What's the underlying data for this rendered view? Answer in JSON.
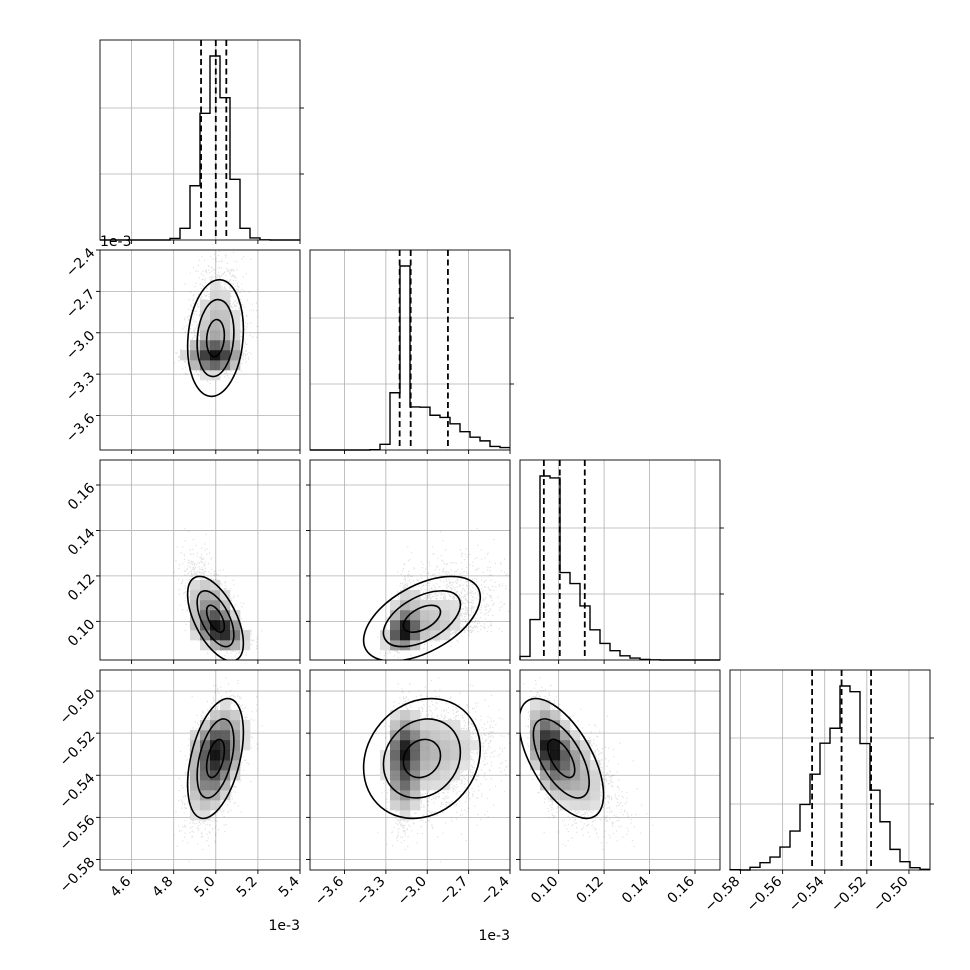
{
  "chart_data": {
    "type": "corner",
    "parameters": [
      {
        "range": [
          4.45,
          5.4
        ],
        "ticks": [
          4.6,
          4.8,
          5.0,
          5.2,
          5.4
        ],
        "tick_labels": [
          "4.6",
          "4.8",
          "5.0",
          "5.2",
          "5.4"
        ],
        "offset_label": "1e-3",
        "quantiles": [
          4.93,
          5.0,
          5.05
        ],
        "peak": 5.0,
        "sigma_left": 0.06,
        "sigma_right": 0.06
      },
      {
        "range": [
          -3.85,
          -2.4
        ],
        "ticks": [
          -3.6,
          -3.3,
          -3.0,
          -2.7,
          -2.4
        ],
        "tick_labels": [
          "−3.6",
          "−3.3",
          "−3.0",
          "−2.7",
          "−2.4"
        ],
        "offset_label": "1e-3",
        "quantiles": [
          -3.2,
          -3.12,
          -2.85
        ],
        "peak": -3.13,
        "sigma_left": 0.06,
        "sigma_right": 0.3
      },
      {
        "range": [
          0.083,
          0.171
        ],
        "ticks": [
          0.1,
          0.12,
          0.14,
          0.16
        ],
        "tick_labels": [
          "0.10",
          "0.12",
          "0.14",
          "0.16"
        ],
        "offset_label": "",
        "quantiles": [
          0.0935,
          0.1005,
          0.1115
        ],
        "peak": 0.098,
        "sigma_left": 0.004,
        "sigma_right": 0.012
      },
      {
        "range": [
          -0.585,
          -0.49
        ],
        "ticks": [
          -0.58,
          -0.56,
          -0.54,
          -0.52,
          -0.5
        ],
        "tick_labels": [
          "−0.58",
          "−0.56",
          "−0.54",
          "−0.52",
          "−0.50"
        ],
        "offset_label": "",
        "quantiles": [
          -0.546,
          -0.532,
          -0.518
        ],
        "peak": -0.531,
        "sigma_left": 0.012,
        "sigma_right": 0.01
      }
    ],
    "correlations": [
      [
        1.0,
        0.15,
        -0.6,
        0.5
      ],
      [
        0.15,
        1.0,
        0.55,
        0.2
      ],
      [
        -0.6,
        0.55,
        1.0,
        -0.7
      ],
      [
        0.5,
        0.2,
        -0.7,
        1.0
      ]
    ],
    "grid": true,
    "histogram_style": "step",
    "contour_levels": 3
  }
}
